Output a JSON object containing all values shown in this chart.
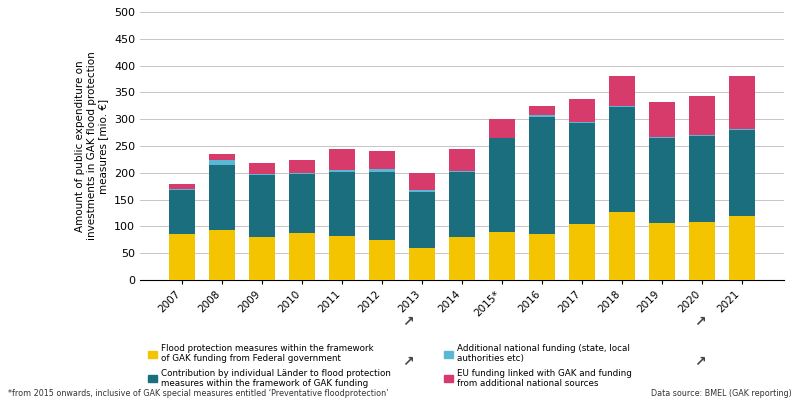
{
  "years": [
    "2007",
    "2008",
    "2009",
    "2010",
    "2011",
    "2012",
    "2013",
    "2014",
    "2015*",
    "2016",
    "2017",
    "2018",
    "2019",
    "2020",
    "2021"
  ],
  "federal": [
    85,
    93,
    80,
    87,
    83,
    75,
    60,
    80,
    90,
    85,
    105,
    127,
    107,
    108,
    120
  ],
  "laender": [
    82,
    122,
    115,
    110,
    118,
    127,
    105,
    122,
    175,
    220,
    188,
    196,
    158,
    160,
    160
  ],
  "additional_national": [
    2,
    8,
    3,
    2,
    4,
    5,
    2,
    2,
    0,
    3,
    2,
    2,
    2,
    2,
    2
  ],
  "eu": [
    10,
    13,
    20,
    25,
    40,
    33,
    33,
    40,
    35,
    17,
    42,
    55,
    65,
    73,
    98
  ],
  "colors": {
    "federal": "#F5C400",
    "laender": "#1A6E7E",
    "additional_national": "#5BB8D4",
    "eu": "#D63B6B"
  },
  "ylim": [
    0,
    500
  ],
  "yticks": [
    0,
    50,
    100,
    150,
    200,
    250,
    300,
    350,
    400,
    450,
    500
  ],
  "ylabel": "Amount of public expenditure on\ninvestments in GAK flood protection\nmeasures [mio. €]",
  "legend_labels": [
    "Flood protection measures within the framework\nof GAK funding from Federal government",
    "Contribution by individual Länder to flood protection\nmeasures within the framework of GAK funding",
    "Additional national funding (state, local\nauthorities etc)",
    "EU funding linked with GAK and funding\nfrom additional national sources"
  ],
  "footnote": "*from 2015 onwards, inclusive of GAK special measures entitled ‘Preventative floodprotection’",
  "datasource": "Data source: BMEL (GAK reporting)",
  "background_color": "#FFFFFF",
  "grid_color": "#BBBBBB"
}
